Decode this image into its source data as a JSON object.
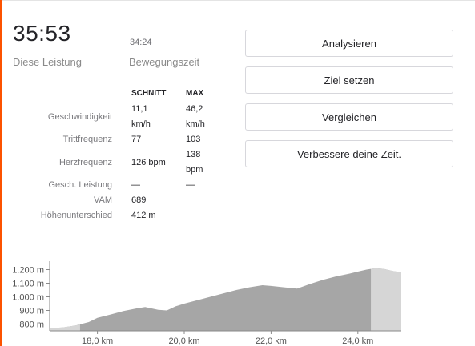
{
  "colors": {
    "accent": "#fc5200",
    "elevation_fill": "#a6a6a6",
    "elevation_fill_highlight": "#d6d6d6"
  },
  "summary": {
    "elapsed_time": "35:53",
    "elapsed_label": "Diese Leistung",
    "moving_time": "34:24",
    "moving_label": "Bewegungszeit"
  },
  "stats": {
    "headers": {
      "avg": "SCHNITT",
      "max": "MAX"
    },
    "rows": [
      {
        "label": "Geschwindigkeit",
        "avg": "11,1",
        "avg_unit": "km/h",
        "max": "46,2",
        "max_unit": "km/h"
      },
      {
        "label": "Trittfrequenz",
        "avg": "77",
        "avg_unit": "",
        "max": "103",
        "max_unit": ""
      },
      {
        "label": "Herzfrequenz",
        "avg": "126 bpm",
        "avg_unit": "",
        "max": "138",
        "max_unit": "bpm"
      },
      {
        "label": "Gesch. Leistung",
        "avg": "—",
        "avg_unit": "",
        "max": "—",
        "max_unit": ""
      },
      {
        "label": "VAM",
        "avg": "689",
        "avg_unit": "",
        "max": "",
        "max_unit": ""
      },
      {
        "label": "Höhenunterschied",
        "avg": "412 m",
        "avg_unit": "",
        "max": "",
        "max_unit": ""
      }
    ]
  },
  "actions": {
    "analyze": "Analysieren",
    "set_goal": "Ziel setzen",
    "compare": "Vergleichen",
    "improve": "Verbessere deine Zeit."
  },
  "chart_data": {
    "type": "area",
    "title": "",
    "xlabel": "",
    "ylabel": "",
    "x_unit": "km",
    "y_unit": "m",
    "xlim": [
      16.9,
      25.0
    ],
    "ylim": [
      750,
      1250
    ],
    "x_ticks": [
      "18,0 km",
      "20,0 km",
      "22,0 km",
      "24,0 km"
    ],
    "x_tick_values": [
      18.0,
      20.0,
      22.0,
      24.0
    ],
    "y_ticks": [
      "800 m",
      "900 m",
      "1.000 m",
      "1.100 m",
      "1.200 m"
    ],
    "y_tick_values": [
      800,
      900,
      1000,
      1100,
      1200
    ],
    "grid": false,
    "highlight_ranges": [
      [
        16.9,
        17.6
      ],
      [
        24.3,
        25.0
      ]
    ],
    "series": [
      {
        "x": [
          16.9,
          17.2,
          17.5,
          17.8,
          18.0,
          18.3,
          18.6,
          18.9,
          19.1,
          19.4,
          19.6,
          19.8,
          20.0,
          20.3,
          20.6,
          20.9,
          21.2,
          21.5,
          21.8,
          22.0,
          22.3,
          22.6,
          22.9,
          23.2,
          23.5,
          23.8,
          24.0,
          24.2,
          24.4,
          24.6,
          24.8,
          25.0
        ],
        "y": [
          770,
          775,
          790,
          815,
          845,
          870,
          895,
          915,
          925,
          905,
          900,
          930,
          950,
          975,
          1000,
          1025,
          1050,
          1070,
          1085,
          1080,
          1070,
          1060,
          1095,
          1125,
          1150,
          1170,
          1185,
          1200,
          1210,
          1205,
          1190,
          1180
        ]
      }
    ]
  }
}
